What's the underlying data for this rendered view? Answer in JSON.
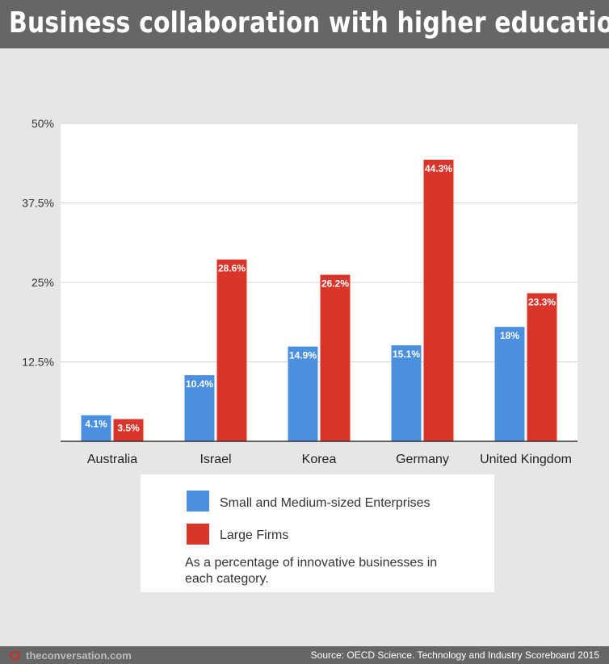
{
  "header": {
    "title": "Business collaboration with higher education"
  },
  "chart_data": {
    "type": "bar",
    "title": "Business collaboration with higher education",
    "categories": [
      "Australia",
      "Israel",
      "Korea",
      "Germany",
      "United Kingdom"
    ],
    "series": [
      {
        "name": "Small and Medium-sized Enterprises",
        "values": [
          4.1,
          10.4,
          14.9,
          15.1,
          18
        ],
        "labels": [
          "4.1%",
          "10.4%",
          "14.9%",
          "15.1%",
          "18%"
        ],
        "color": "#4a8fe0"
      },
      {
        "name": "Large Firms",
        "values": [
          3.5,
          28.6,
          26.2,
          44.3,
          23.3
        ],
        "labels": [
          "3.5%",
          "28.6%",
          "26.2%",
          "44.3%",
          "23.3%"
        ],
        "color": "#d9352b"
      }
    ],
    "yticks": [
      0,
      12.5,
      25,
      37.5,
      50
    ],
    "ytick_labels": [
      "",
      "12.5%",
      "25%",
      "37.5%",
      "50%"
    ],
    "ylim": [
      0,
      50
    ],
    "grid": true,
    "legend_position": "bottom"
  },
  "legend": {
    "items": [
      {
        "label": "Small and Medium-sized Enterprises",
        "color": "#4a8fe0"
      },
      {
        "label": "Large Firms",
        "color": "#d9352b"
      }
    ],
    "note": "As a percentage of innovative businesses in each category."
  },
  "footer": {
    "brand": "theconversation.com",
    "brand_icon": "speech-bubble-icon",
    "source": "Source: OECD Science. Technology and Industry Scoreboard 2015"
  }
}
